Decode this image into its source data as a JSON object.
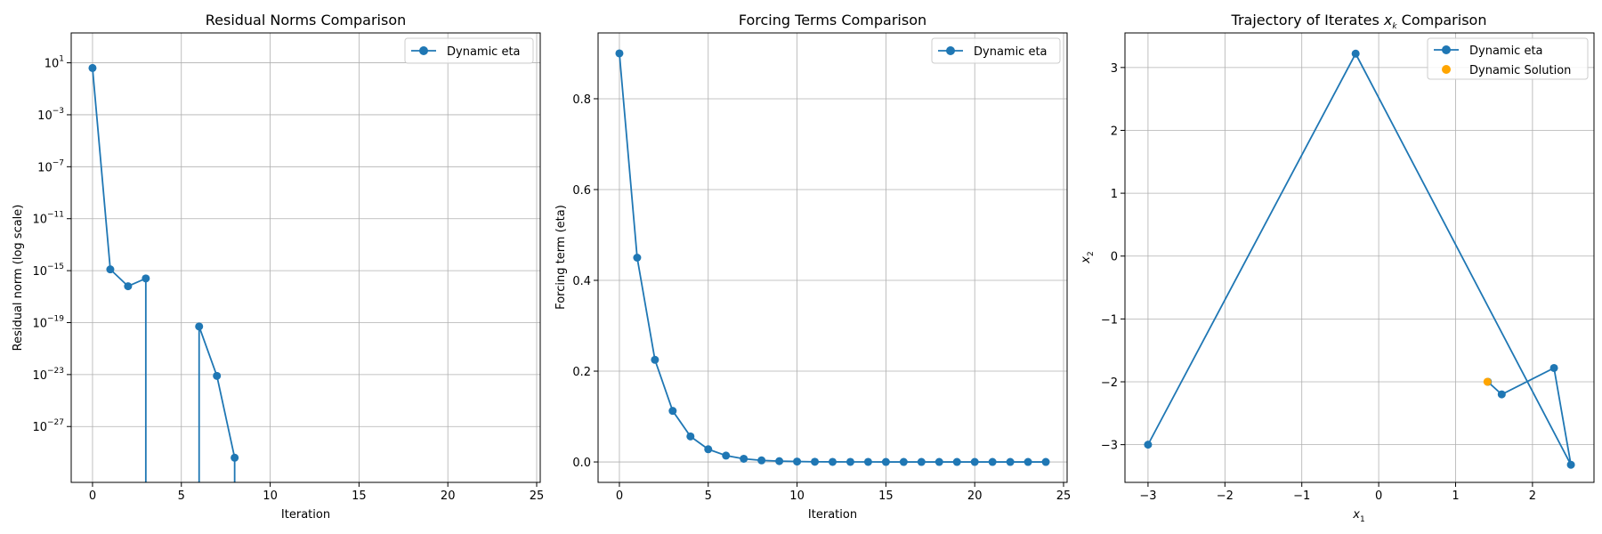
{
  "chart_data": [
    {
      "type": "line",
      "title": "Residual Norms Comparison",
      "xlabel": "Iteration",
      "ylabel": "Residual norm (log scale)",
      "yscale": "log",
      "xlim": [
        -1.2,
        25.2
      ],
      "ylim_log10": [
        -31.3,
        3.3
      ],
      "xticks": [
        0,
        5,
        10,
        15,
        20,
        25
      ],
      "yticks_exp": [
        1,
        -3,
        -7,
        -11,
        -15,
        -19,
        -23,
        -27
      ],
      "grid": true,
      "legend": "top-right",
      "series": [
        {
          "name": "Dynamic eta",
          "color": "#1f77b4",
          "x": [
            0,
            1,
            2,
            3,
            4,
            5,
            6,
            7,
            8
          ],
          "log10_y": [
            0.6,
            -14.9,
            -16.2,
            -15.6,
            null,
            null,
            -19.3,
            -23.1,
            -29.4
          ]
        }
      ]
    },
    {
      "type": "line",
      "title": "Forcing Terms Comparison",
      "xlabel": "Iteration",
      "ylabel": "Forcing term (eta)",
      "xlim": [
        -1.2,
        25.2
      ],
      "ylim": [
        -0.045,
        0.945
      ],
      "xticks": [
        0,
        5,
        10,
        15,
        20,
        25
      ],
      "yticks": [
        0.0,
        0.2,
        0.4,
        0.6,
        0.8
      ],
      "grid": true,
      "legend": "top-right",
      "series": [
        {
          "name": "Dynamic eta",
          "color": "#1f77b4",
          "x": [
            0,
            1,
            2,
            3,
            4,
            5,
            6,
            7,
            8,
            9,
            10,
            11,
            12,
            13,
            14,
            15,
            16,
            17,
            18,
            19,
            20,
            21,
            22,
            23,
            24
          ],
          "y": [
            0.9,
            0.45,
            0.225,
            0.1125,
            0.05625,
            0.028,
            0.014,
            0.007,
            0.0035,
            0.0018,
            0.0009,
            0.0004,
            0.0002,
            0.0001,
            0.0001,
            0.0,
            0.0,
            0.0,
            0.0,
            0.0,
            0.0,
            0.0,
            0.0,
            0.0,
            0.0
          ]
        }
      ]
    },
    {
      "type": "line",
      "title": "Trajectory of Iterates",
      "title_math": "x",
      "title_math_sub": "k",
      "title_suffix": "Comparison",
      "xlabel": "x",
      "xlabel_sub": "1",
      "ylabel": "x",
      "ylabel_sub": "2",
      "xlim": [
        -3.3,
        2.8
      ],
      "ylim": [
        -3.6,
        3.55
      ],
      "xticks": [
        -3,
        -2,
        -1,
        0,
        1,
        2
      ],
      "yticks": [
        -3,
        -2,
        -1,
        0,
        1,
        2,
        3
      ],
      "grid": true,
      "legend": "top-right",
      "series": [
        {
          "name": "Dynamic eta",
          "color": "#1f77b4",
          "x": [
            -3.0,
            -0.3,
            2.5,
            2.28,
            1.6,
            1.42
          ],
          "y": [
            -3.0,
            3.22,
            -3.32,
            -1.78,
            -2.2,
            -2.0
          ]
        },
        {
          "name": "Dynamic Solution",
          "color": "#ffa500",
          "x": [
            1.414
          ],
          "y": [
            -2.0
          ],
          "kind": "point"
        }
      ]
    }
  ]
}
